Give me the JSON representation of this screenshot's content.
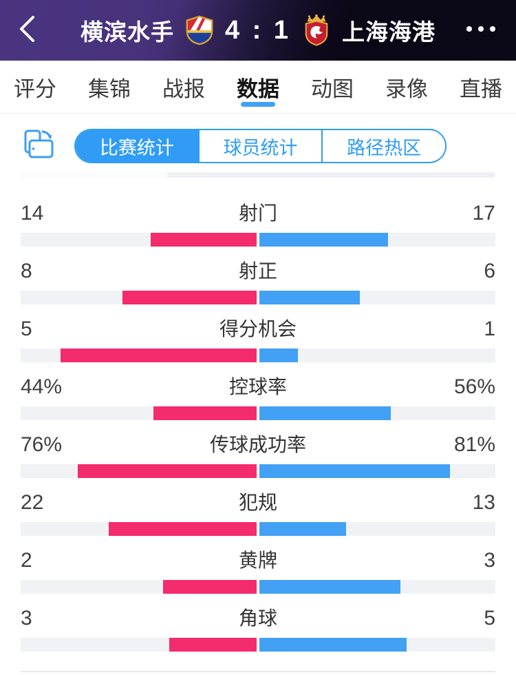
{
  "header": {
    "home_team": "横滨水手",
    "away_team": "上海海港",
    "score": "4 : 1",
    "back_icon": "chevron-left-icon",
    "more_icon": "ellipsis-icon",
    "home_badge": "yokohama-marinos-crest",
    "away_badge": "shanghai-port-crest"
  },
  "tabs": {
    "items": [
      {
        "label": "评分",
        "active": false
      },
      {
        "label": "集锦",
        "active": false
      },
      {
        "label": "战报",
        "active": false
      },
      {
        "label": "数据",
        "active": true
      },
      {
        "label": "动图",
        "active": false
      },
      {
        "label": "录像",
        "active": false
      },
      {
        "label": "直播",
        "active": false
      }
    ]
  },
  "subtabs": {
    "rotate_icon": "rotate-device-icon",
    "items": [
      {
        "label": "比赛统计",
        "active": true
      },
      {
        "label": "球员统计",
        "active": false
      },
      {
        "label": "路径热区",
        "active": false
      }
    ]
  },
  "colors": {
    "home_bar": "#f42b6d",
    "away_bar": "#42a0f5",
    "accent_blue": "#309cf5",
    "bar_track": "#f0f2f6",
    "header_purple": "#4a3481"
  },
  "stats": {
    "rows": [
      {
        "label": "射门",
        "home": 14,
        "away": 17,
        "home_text": "14",
        "away_text": "17",
        "mode": "share"
      },
      {
        "label": "射正",
        "home": 8,
        "away": 6,
        "home_text": "8",
        "away_text": "6",
        "mode": "share"
      },
      {
        "label": "得分机会",
        "home": 5,
        "away": 1,
        "home_text": "5",
        "away_text": "1",
        "mode": "share"
      },
      {
        "label": "控球率",
        "home": 44,
        "away": 56,
        "home_text": "44%",
        "away_text": "56%",
        "mode": "percent"
      },
      {
        "label": "传球成功率",
        "home": 76,
        "away": 81,
        "home_text": "76%",
        "away_text": "81%",
        "mode": "percent"
      },
      {
        "label": "犯规",
        "home": 22,
        "away": 13,
        "home_text": "22",
        "away_text": "13",
        "mode": "share"
      },
      {
        "label": "黄牌",
        "home": 2,
        "away": 3,
        "home_text": "2",
        "away_text": "3",
        "mode": "share"
      },
      {
        "label": "角球",
        "home": 3,
        "away": 5,
        "home_text": "3",
        "away_text": "5",
        "mode": "share"
      }
    ]
  }
}
